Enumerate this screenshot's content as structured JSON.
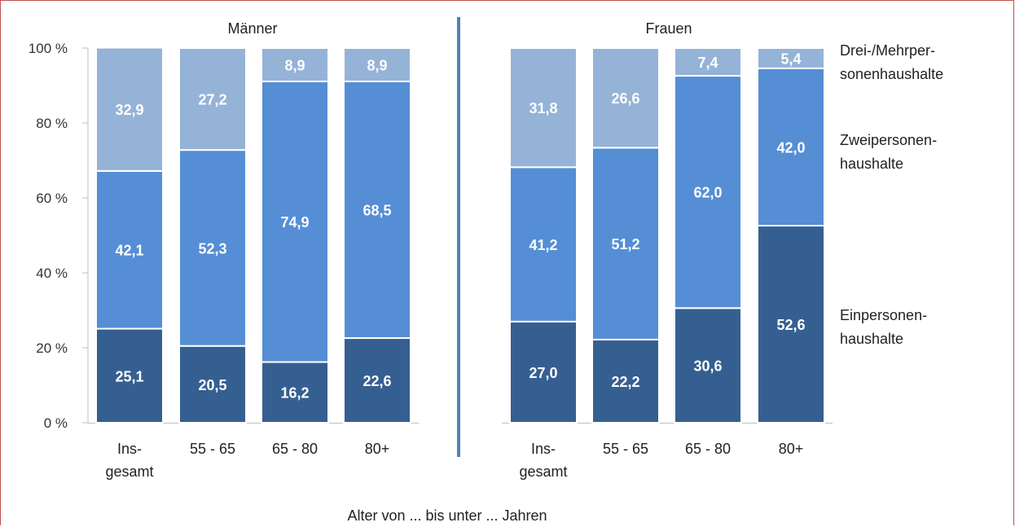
{
  "chart_data": {
    "type": "bar",
    "stacked": true,
    "percent": true,
    "xlabel": "Alter von ... bis unter ... Jahren",
    "ylim": [
      0,
      100
    ],
    "yticks": [
      "0 %",
      "20 %",
      "40 %",
      "60 %",
      "80 %",
      "100 %"
    ],
    "groups": [
      {
        "title": "Männer",
        "categories": [
          "Ins-|gesamt",
          "55 - 65",
          "65 - 80",
          "80+"
        ],
        "series": [
          {
            "name": "Einpersonen-|haushalte",
            "color": "#365f91",
            "values": [
              25.1,
              20.5,
              16.2,
              22.6
            ],
            "labels": [
              "25,1",
              "20,5",
              "16,2",
              "22,6"
            ]
          },
          {
            "name": "Zweipersonen-|haushalte",
            "color": "#558ed5",
            "values": [
              42.1,
              52.3,
              74.9,
              68.5
            ],
            "labels": [
              "42,1",
              "52,3",
              "74,9",
              "68,5"
            ]
          },
          {
            "name": "Drei-/Mehrper-|sonenhaushalte",
            "color": "#95b3d7",
            "values": [
              32.9,
              27.2,
              8.9,
              8.9
            ],
            "labels": [
              "32,9",
              "27,2",
              "8,9",
              "8,9"
            ]
          }
        ]
      },
      {
        "title": "Frauen",
        "categories": [
          "Ins-|gesamt",
          "55 - 65",
          "65 - 80",
          "80+"
        ],
        "series": [
          {
            "name": "Einpersonen-|haushalte",
            "color": "#365f91",
            "values": [
              27.0,
              22.2,
              30.6,
              52.6
            ],
            "labels": [
              "27,0",
              "22,2",
              "30,6",
              "52,6"
            ]
          },
          {
            "name": "Zweipersonen-|haushalte",
            "color": "#558ed5",
            "values": [
              41.2,
              51.2,
              62.0,
              42.0
            ],
            "labels": [
              "41,2",
              "51,2",
              "62,0",
              "42,0"
            ]
          },
          {
            "name": "Drei-/Mehrper-|sonenhaushalte",
            "color": "#95b3d7",
            "values": [
              31.8,
              26.6,
              7.4,
              5.4
            ],
            "labels": [
              "31,8",
              "26,6",
              "7,4",
              "5,4"
            ]
          }
        ]
      }
    ],
    "legend": [
      {
        "label": "Drei-/Mehrper-|sonenhaushalte",
        "color": "#95b3d7"
      },
      {
        "label": "Zweipersonen-|haushalte",
        "color": "#558ed5"
      },
      {
        "label": "Einpersonen-|haushalte",
        "color": "#365f91"
      }
    ],
    "legend_position": "right",
    "divider_color": "#4f81bd"
  }
}
